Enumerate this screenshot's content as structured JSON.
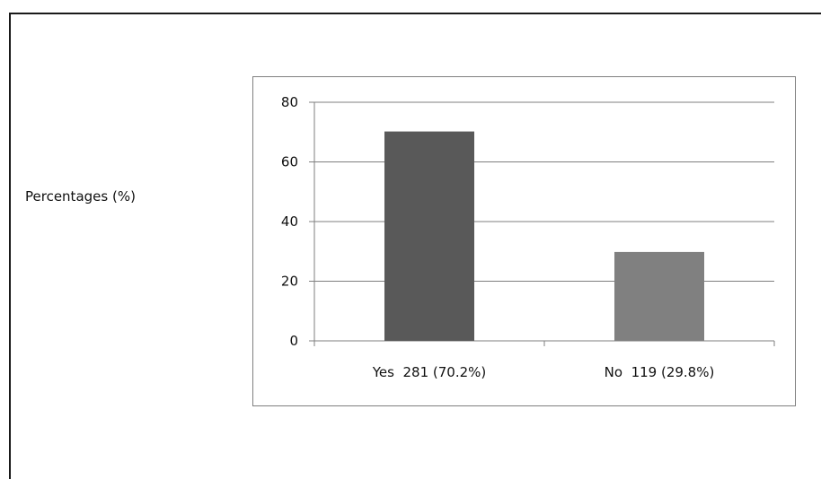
{
  "chart_data": {
    "type": "bar",
    "title": "",
    "xlabel": "",
    "ylabel": "Percentages (%)",
    "categories": [
      "Yes  281 (70.2%)",
      "No  119 (29.8%)"
    ],
    "values": [
      70.2,
      29.8
    ],
    "ylim": [
      0,
      80
    ],
    "yticks": [
      0,
      20,
      40,
      60,
      80
    ],
    "grid": true,
    "legend": "none",
    "colors": {
      "bar_yes": "#595959",
      "bar_no": "#808080",
      "gridline": "#7f7f7f",
      "axis": "#7f7f7f"
    }
  }
}
